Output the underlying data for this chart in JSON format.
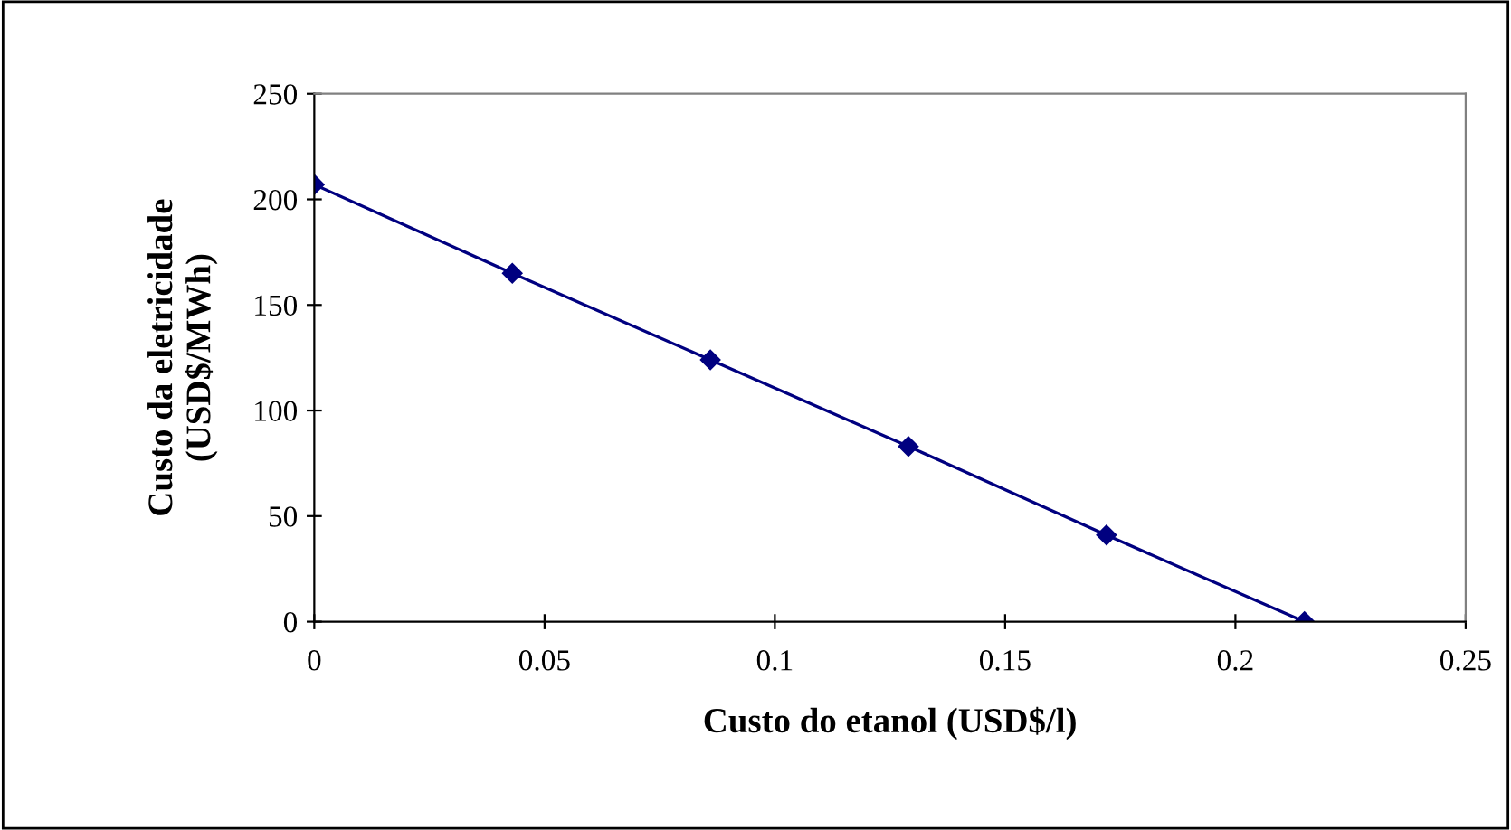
{
  "chart_data": {
    "type": "line",
    "xlabel": "Custo do etanol (USD$/l)",
    "ylabel": "Custo da eletricidade\n(USD$/MWh)",
    "x": [
      0,
      0.043,
      0.086,
      0.129,
      0.172,
      0.215
    ],
    "series": [
      {
        "color": "#000080",
        "values": [
          207,
          165,
          124,
          83,
          41,
          0
        ]
      }
    ],
    "marker": "diamond",
    "line_style": "solid",
    "grid": false,
    "legend": false,
    "xlim": [
      0,
      0.25
    ],
    "xticks": [
      0,
      0.05,
      0.1,
      0.15,
      0.2,
      0.25
    ],
    "ylim": [
      0,
      250
    ],
    "yticks": [
      0,
      50,
      100,
      150,
      200,
      250
    ]
  }
}
